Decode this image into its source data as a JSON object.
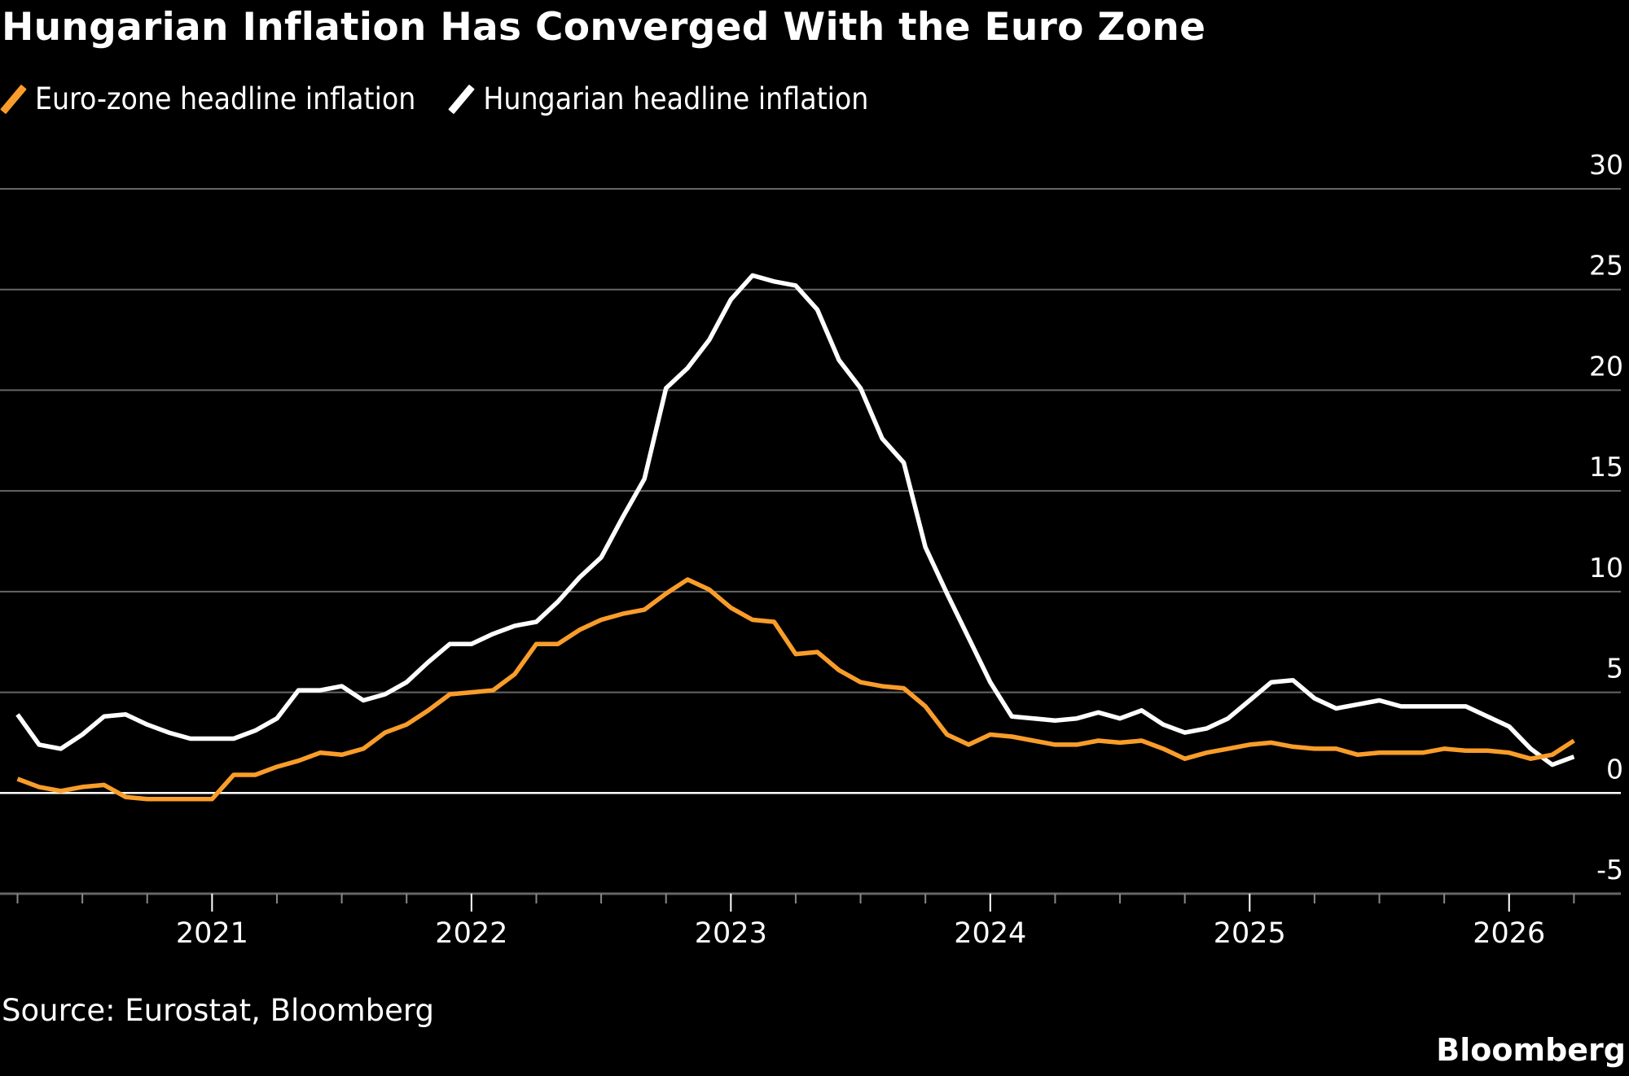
{
  "title": "Hungarian Inflation Has Converged With the Euro Zone",
  "source": "Source: Eurostat, Bloomberg",
  "brand": "Bloomberg",
  "legend": [
    {
      "label": "Euro-zone headline inflation",
      "color": "#F99D2A"
    },
    {
      "label": "Hungarian headline inflation",
      "color": "#FFFFFF"
    }
  ],
  "chart_data": {
    "type": "line",
    "title": "Hungarian Inflation Has Converged With the Euro Zone",
    "xlabel": "",
    "ylabel": "",
    "ylim": [
      -5,
      30
    ],
    "y_ticks": [
      30,
      25,
      20,
      15,
      10,
      5,
      0,
      -5
    ],
    "y_tick_labels": [
      "30",
      "25",
      "20",
      "15",
      "10",
      "5",
      "0",
      "-5"
    ],
    "y_axis_side": "right",
    "x_tick_labels": [
      "2021",
      "2022",
      "2023",
      "2024",
      "2025",
      "2026"
    ],
    "x_start": "2020-03",
    "x_end": "2026-03",
    "x_frequency": "monthly",
    "grid": true,
    "legend_position": "top-left",
    "x": [
      "2020-03",
      "2020-04",
      "2020-05",
      "2020-06",
      "2020-07",
      "2020-08",
      "2020-09",
      "2020-10",
      "2020-11",
      "2020-12",
      "2021-01",
      "2021-02",
      "2021-03",
      "2021-04",
      "2021-05",
      "2021-06",
      "2021-07",
      "2021-08",
      "2021-09",
      "2021-10",
      "2021-11",
      "2021-12",
      "2022-01",
      "2022-02",
      "2022-03",
      "2022-04",
      "2022-05",
      "2022-06",
      "2022-07",
      "2022-08",
      "2022-09",
      "2022-10",
      "2022-11",
      "2022-12",
      "2023-01",
      "2023-02",
      "2023-03",
      "2023-04",
      "2023-05",
      "2023-06",
      "2023-07",
      "2023-08",
      "2023-09",
      "2023-10",
      "2023-11",
      "2023-12",
      "2024-01",
      "2024-02",
      "2024-03",
      "2024-04",
      "2024-05",
      "2024-06",
      "2024-07",
      "2024-08",
      "2024-09",
      "2024-10",
      "2024-11",
      "2024-12",
      "2025-01",
      "2025-02",
      "2025-03",
      "2025-04",
      "2025-05",
      "2025-06",
      "2025-07",
      "2025-08",
      "2025-09",
      "2025-10",
      "2025-11",
      "2025-12",
      "2026-01",
      "2026-02",
      "2026-03"
    ],
    "series": [
      {
        "name": "Euro-zone headline inflation",
        "color": "#F99D2A",
        "values": [
          0.7,
          0.3,
          0.1,
          0.3,
          0.4,
          -0.2,
          -0.3,
          -0.3,
          -0.3,
          -0.3,
          0.9,
          0.9,
          1.3,
          1.6,
          2.0,
          1.9,
          2.2,
          3.0,
          3.4,
          4.1,
          4.9,
          5.0,
          5.1,
          5.9,
          7.4,
          7.4,
          8.1,
          8.6,
          8.9,
          9.1,
          9.9,
          10.6,
          10.1,
          9.2,
          8.6,
          8.5,
          6.9,
          7.0,
          6.1,
          5.5,
          5.3,
          5.2,
          4.3,
          2.9,
          2.4,
          2.9,
          2.8,
          2.6,
          2.4,
          2.4,
          2.6,
          2.5,
          2.6,
          2.2,
          1.7,
          2.0,
          2.2,
          2.4,
          2.5,
          2.3,
          2.2,
          2.2,
          1.9,
          2.0,
          2.0,
          2.0,
          2.2,
          2.1,
          2.1,
          2.0,
          1.7,
          1.9,
          2.6
        ]
      },
      {
        "name": "Hungarian headline inflation",
        "color": "#FFFFFF",
        "values": [
          3.9,
          2.4,
          2.2,
          2.9,
          3.8,
          3.9,
          3.4,
          3.0,
          2.7,
          2.7,
          2.7,
          3.1,
          3.7,
          5.1,
          5.1,
          5.3,
          4.6,
          4.9,
          5.5,
          6.5,
          7.4,
          7.4,
          7.9,
          8.3,
          8.5,
          9.5,
          10.7,
          11.7,
          13.7,
          15.6,
          20.1,
          21.1,
          22.5,
          24.5,
          25.7,
          25.4,
          25.2,
          24.0,
          21.5,
          20.1,
          17.6,
          16.4,
          12.2,
          9.9,
          7.7,
          5.5,
          3.8,
          3.7,
          3.6,
          3.7,
          4.0,
          3.7,
          4.1,
          3.4,
          3.0,
          3.2,
          3.7,
          4.6,
          5.5,
          5.6,
          4.7,
          4.2,
          4.4,
          4.6,
          4.3,
          4.3,
          4.3,
          4.3,
          3.8,
          3.3,
          2.2,
          1.4,
          1.8
        ]
      }
    ]
  }
}
